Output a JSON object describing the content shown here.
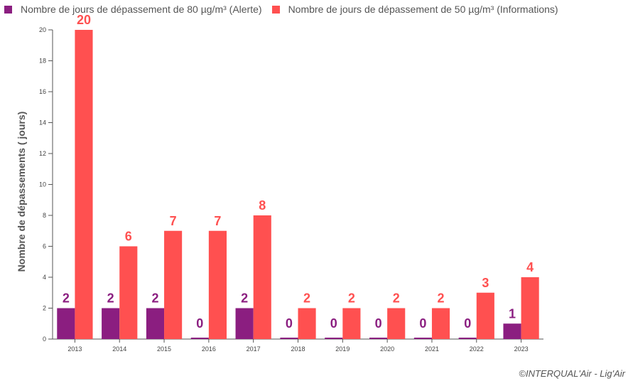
{
  "legend": {
    "alert_label": "Nombre de jours de dépassement de 80 µg/m³ (Alerte)",
    "info_label": "Nombre de jours de dépassement de 50 µg/m³ (Informations)"
  },
  "credit": "©INTERQUAL'Air - Lig'Air",
  "colors": {
    "alert": "#8b1e80",
    "info": "#ff5050",
    "axis": "#555555"
  },
  "chart_data": {
    "type": "bar",
    "ylabel": "Nombre de dépassements ( jours)",
    "ylim": [
      0,
      20
    ],
    "yticks": [
      0,
      2,
      4,
      6,
      8,
      10,
      12,
      14,
      16,
      18,
      20
    ],
    "categories": [
      "2013",
      "2014",
      "2015",
      "2016",
      "2017",
      "2018",
      "2019",
      "2020",
      "2021",
      "2022",
      "2023"
    ],
    "series": [
      {
        "name": "Nombre de jours de dépassement de 80 µg/m³ (Alerte)",
        "values": [
          2,
          2,
          2,
          0,
          2,
          0,
          0,
          0,
          0,
          0,
          1
        ]
      },
      {
        "name": "Nombre de jours de dépassement de 50 µg/m³ (Informations)",
        "values": [
          20,
          6,
          7,
          7,
          8,
          2,
          2,
          2,
          2,
          3,
          4
        ]
      }
    ],
    "legend_position": "top-left",
    "grid": false,
    "data_labels": true
  }
}
